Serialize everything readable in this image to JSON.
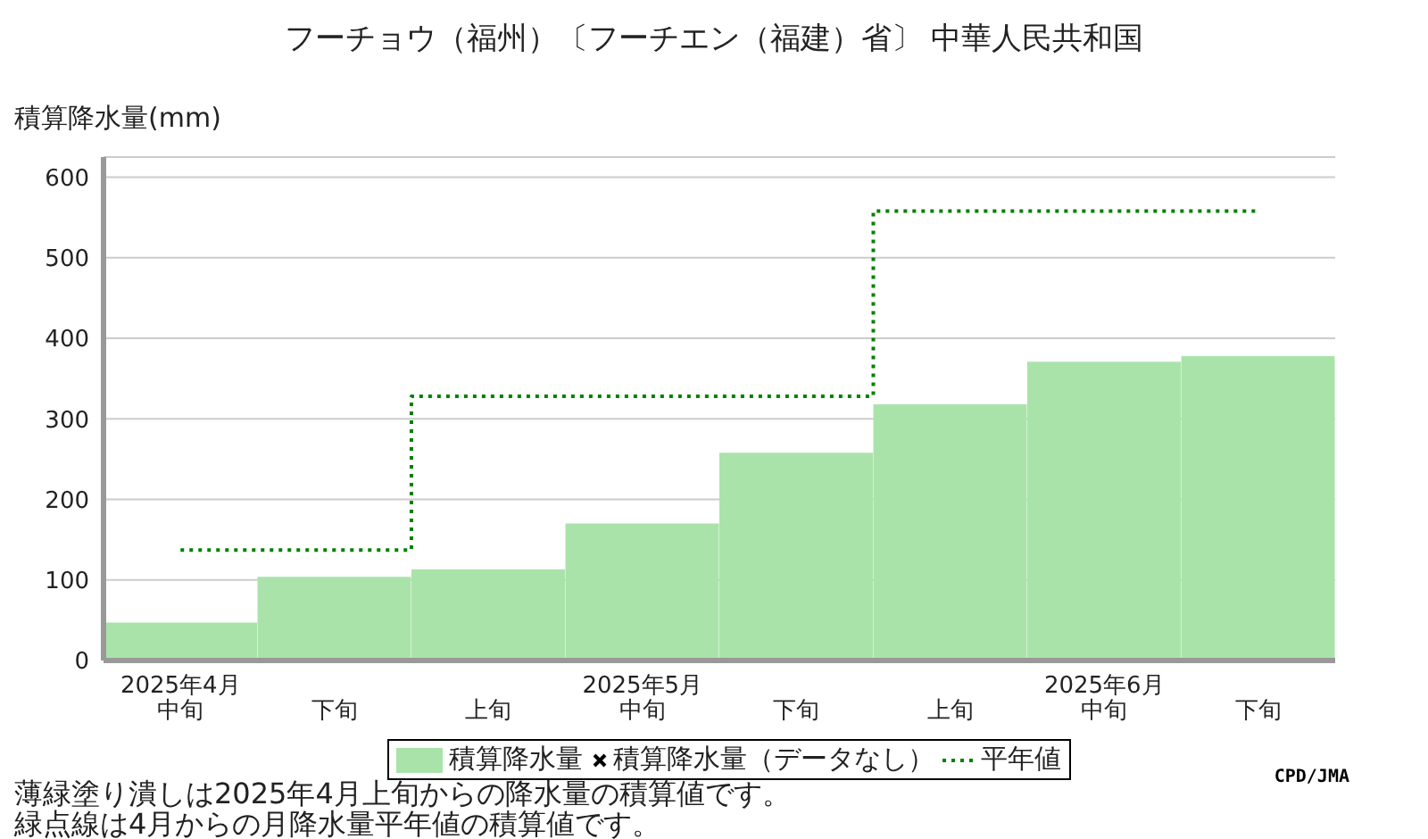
{
  "chart_data": {
    "type": "bar",
    "title": "フーチョウ（福州）〔フーチエン（福建）省〕 中華人民共和国",
    "ylabel": "積算降水量(mm)",
    "categories": [
      "2025年4月中旬",
      "下旬",
      "上旬",
      "2025年5月中旬",
      "下旬",
      "上旬",
      "2025年6月中旬",
      "下旬"
    ],
    "series": [
      {
        "name": "積算降水量",
        "color": "#aae3aa",
        "values": [
          47,
          104,
          113,
          170,
          258,
          318,
          371,
          378
        ]
      },
      {
        "name": "積算降水量（データなし）",
        "type": "scatter",
        "marker": "cross",
        "color": "#000000",
        "values": [
          null,
          null,
          null,
          null,
          null,
          null,
          null,
          null
        ]
      },
      {
        "name": "平年値",
        "type": "step",
        "line_style": "dotted",
        "color": "#008000",
        "values": [
          137,
          137,
          328,
          328,
          328,
          558,
          558,
          558
        ]
      }
    ],
    "ylim": [
      0,
      625
    ],
    "yticks": [
      0,
      100,
      200,
      300,
      400,
      500,
      600
    ],
    "grid": "y",
    "legend": "bottom",
    "annotations": [
      "CPD/JMA",
      "薄緑塗り潰しは2025年4月上旬からの降水量の積算値です。",
      "緑点線は4月からの月降水量平年値の積算値です。"
    ]
  }
}
